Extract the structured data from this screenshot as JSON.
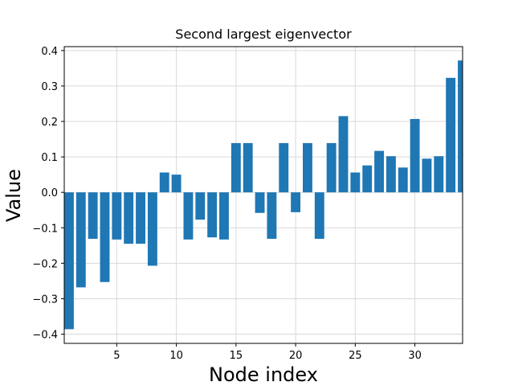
{
  "chart_data": {
    "type": "bar",
    "title": "Second largest eigenvector",
    "xlabel": "Node index",
    "ylabel": "Value",
    "x": [
      1,
      2,
      3,
      4,
      5,
      6,
      7,
      8,
      9,
      10,
      11,
      12,
      13,
      14,
      15,
      16,
      17,
      18,
      19,
      20,
      21,
      22,
      23,
      24,
      25,
      26,
      27,
      28,
      29,
      30,
      31,
      32,
      33,
      34
    ],
    "values": [
      -0.386,
      -0.268,
      -0.131,
      -0.253,
      -0.133,
      -0.145,
      -0.145,
      -0.207,
      0.056,
      0.05,
      -0.133,
      -0.077,
      -0.127,
      -0.133,
      0.139,
      0.139,
      -0.058,
      -0.131,
      0.139,
      -0.056,
      0.139,
      -0.131,
      0.139,
      0.215,
      0.056,
      0.076,
      0.117,
      0.102,
      0.07,
      0.207,
      0.095,
      0.102,
      0.323,
      0.372
    ],
    "xlim": [
      0.6,
      34.0
    ],
    "ylim": [
      -0.426,
      0.411
    ],
    "xticks": [
      5,
      10,
      15,
      20,
      25,
      30
    ],
    "yticks": [
      -0.4,
      -0.3,
      -0.2,
      -0.1,
      0.0,
      0.1,
      0.2,
      0.3,
      0.4
    ],
    "ytick_labels": [
      "−0.4",
      "−0.3",
      "−0.2",
      "−0.1",
      "0.0",
      "0.1",
      "0.2",
      "0.3",
      "0.4"
    ],
    "grid": true,
    "bar_color": "#1f77b4",
    "grid_color": "#d9d9d9"
  }
}
